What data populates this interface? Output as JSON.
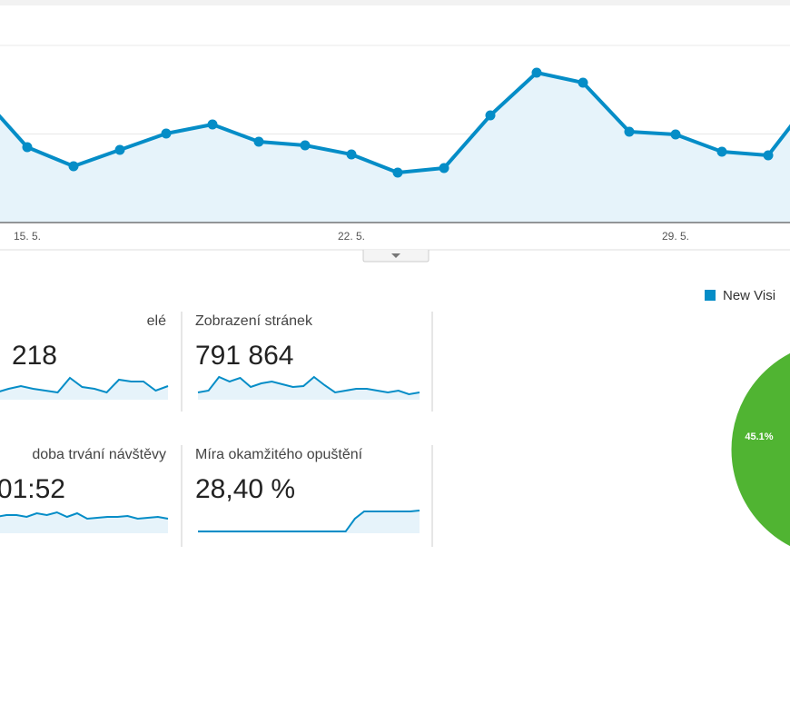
{
  "main_chart": {
    "type": "line",
    "categories": [
      null,
      "15. 5.",
      null,
      null,
      null,
      null,
      null,
      null,
      "22. 5.",
      null,
      null,
      null,
      null,
      null,
      null,
      "29. 5.",
      null,
      null,
      null
    ],
    "values": [
      140,
      83,
      62,
      80,
      98,
      108,
      89,
      85,
      75,
      55,
      60,
      118,
      165,
      154,
      100,
      97,
      78,
      74,
      140
    ],
    "color": "#058dc7",
    "ylim": [
      0,
      195
    ],
    "grid": true
  },
  "metrics": [
    {
      "label": "elé",
      "value": "218",
      "sparkline": {
        "values": [
          8,
          12,
          15,
          12,
          10,
          8,
          24,
          14,
          12,
          8,
          22,
          20,
          20,
          10,
          15
        ],
        "ylim": [
          0,
          30
        ]
      }
    },
    {
      "label": "Zobrazení stránek",
      "value": "791 864",
      "sparkline": {
        "values": [
          8,
          10,
          25,
          20,
          24,
          14,
          18,
          20,
          17,
          14,
          15,
          25,
          16,
          8,
          10,
          12,
          12,
          10,
          8,
          10,
          6,
          8
        ],
        "ylim": [
          0,
          30
        ]
      }
    },
    {
      "label": "doba trvání návštěvy",
      "value": "01:52",
      "sparkline": {
        "values": [
          18,
          20,
          20,
          18,
          22,
          20,
          23,
          18,
          22,
          16,
          17,
          18,
          18,
          19,
          16,
          17,
          18,
          16
        ],
        "ylim": [
          0,
          30
        ]
      }
    },
    {
      "label": "Míra okamžitého opuštění",
      "value": "28,40 %",
      "sparkline": {
        "values": [
          2,
          2,
          2,
          2,
          2,
          2,
          2,
          2,
          2,
          2,
          2,
          2,
          2,
          2,
          2,
          2,
          2,
          16,
          24,
          24,
          24,
          24,
          24,
          24,
          25
        ],
        "ylim": [
          0,
          30
        ]
      }
    }
  ],
  "pie": {
    "type": "pie",
    "legend": "New Visi",
    "values": [
      45.1
    ],
    "value_labels": [
      "45.1%"
    ],
    "color": "#50b432",
    "legend_color": "#058dc7"
  }
}
